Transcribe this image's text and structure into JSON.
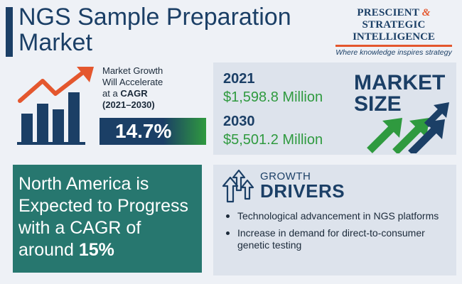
{
  "header": {
    "title_line1": "NGS Sample Preparation",
    "title_line2": "Market"
  },
  "logo": {
    "word1": "PRESCIENT",
    "amp": "&",
    "word2": "STRATEGIC",
    "line2": "INTELLIGENCE",
    "tagline": "Where knowledge inspires strategy"
  },
  "growth": {
    "line1": "Market Growth",
    "line2": "Will Accelerate",
    "line3_prefix": "at a",
    "line3_bold": "CAGR",
    "period": "(2021–2030)",
    "cagr": "14.7%",
    "icon": "bar-chart-growth-icon"
  },
  "market_size": {
    "year1": "2021",
    "value1": "$1,598.8 Million",
    "year2": "2030",
    "value2": "$5,501.2 Million",
    "label_line1": "MARKET",
    "label_line2": "SIZE",
    "icon": "upward-arrows-icon"
  },
  "north_america": {
    "line1": "North America is",
    "line2": "Expected to Progress",
    "line3": "with a CAGR of",
    "line4_prefix": "around",
    "line4_bold": "15%"
  },
  "drivers": {
    "head1": "GROWTH",
    "head2": "DRIVERS",
    "items": [
      "Technological advancement in NGS platforms",
      "Increase in demand for direct-to-consumer genetic testing"
    ],
    "icon": "growth-arrows-icon"
  },
  "colors": {
    "navy": "#1b3f66",
    "green": "#2f9a3f",
    "teal": "#27776f",
    "orange": "#e4572e",
    "panel": "#dde3ec"
  }
}
